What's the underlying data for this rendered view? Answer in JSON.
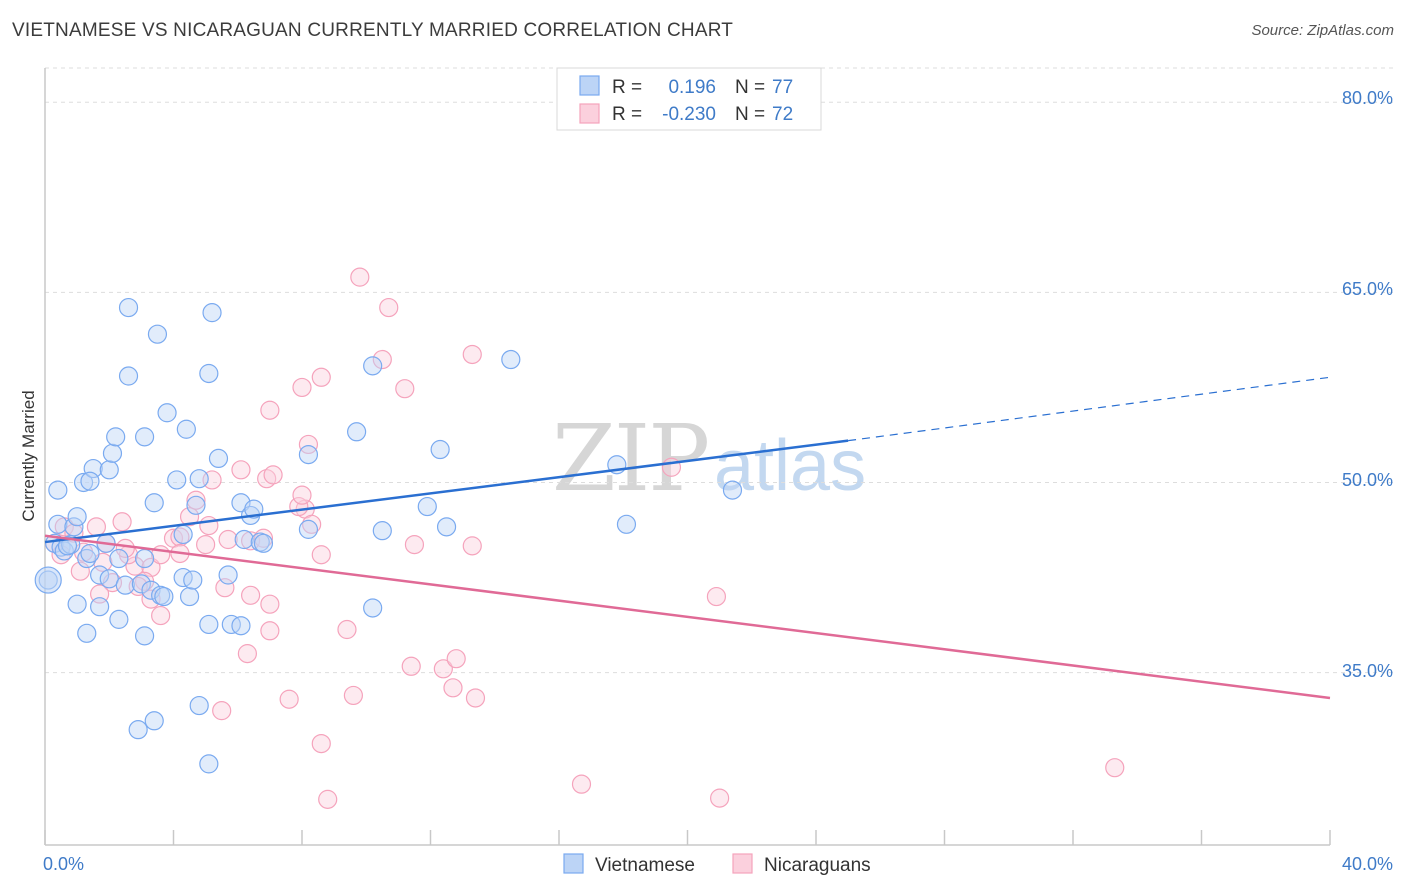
{
  "header": {
    "title": "VIETNAMESE VS NICARAGUAN CURRENTLY MARRIED CORRELATION CHART",
    "source": "Source: ZipAtlas.com"
  },
  "watermark": {
    "zip": "ZIP",
    "atlas": "atlas"
  },
  "legend": {
    "rows": [
      {
        "r_label": "R =",
        "r_value": "0.196",
        "n_label": "N =",
        "n_value": "77",
        "color": "#7aaaf0"
      },
      {
        "r_label": "R =",
        "r_value": "-0.230",
        "n_label": "N =",
        "n_value": "72",
        "color": "#f5a3bc"
      }
    ]
  },
  "bottom_legend": {
    "vietnamese": "Vietnamese",
    "nicaraguans": "Nicaraguans"
  },
  "axis": {
    "ylabel": "Currently Married",
    "x_min_label": "0.0%",
    "x_max_label": "40.0%",
    "y_ticks": [
      "80.0%",
      "65.0%",
      "50.0%",
      "35.0%"
    ]
  },
  "chart_data": {
    "type": "scatter",
    "title": "VIETNAMESE VS NICARAGUAN CURRENTLY MARRIED CORRELATION CHART",
    "xlabel": "",
    "ylabel": "Currently Married",
    "xlim": [
      0,
      40
    ],
    "ylim": [
      21.4,
      82.7
    ],
    "y_ticks": [
      35,
      50,
      65,
      80
    ],
    "grid": true,
    "colors": {
      "vietnamese": "#7aaaf0",
      "vietnamese_line": "#2a6fd1",
      "nicaraguans": "#f5a3bc",
      "nicaraguans_line": "#e06a96"
    },
    "series": [
      {
        "name": "Vietnamese",
        "trend": {
          "x0": 0,
          "y0": 45.3,
          "x1": 25,
          "y1": 53.3,
          "dashed_to_x": 40,
          "dashed_to_y": 58.3
        },
        "points": [
          [
            0.3,
            45.2
          ],
          [
            0.5,
            44.9
          ],
          [
            0.4,
            46.7
          ],
          [
            0.6,
            44.6
          ],
          [
            0.8,
            45.1
          ],
          [
            0.9,
            46.5
          ],
          [
            1.0,
            47.3
          ],
          [
            0.4,
            49.4
          ],
          [
            1.2,
            50.0
          ],
          [
            1.5,
            51.1
          ],
          [
            1.4,
            50.1
          ],
          [
            2.0,
            51.0
          ],
          [
            2.1,
            52.3
          ],
          [
            2.2,
            53.6
          ],
          [
            3.1,
            53.6
          ],
          [
            2.6,
            58.4
          ],
          [
            3.5,
            61.7
          ],
          [
            2.6,
            63.8
          ],
          [
            5.1,
            58.6
          ],
          [
            5.2,
            63.4
          ],
          [
            3.8,
            55.5
          ],
          [
            4.4,
            54.2
          ],
          [
            5.4,
            51.9
          ],
          [
            4.1,
            50.2
          ],
          [
            4.8,
            50.3
          ],
          [
            3.4,
            48.4
          ],
          [
            4.7,
            48.2
          ],
          [
            6.1,
            48.4
          ],
          [
            6.4,
            47.4
          ],
          [
            6.5,
            47.9
          ],
          [
            1.9,
            45.2
          ],
          [
            2.3,
            44.0
          ],
          [
            3.1,
            44.0
          ],
          [
            4.3,
            45.9
          ],
          [
            6.2,
            45.5
          ],
          [
            6.7,
            45.3
          ],
          [
            8.2,
            46.3
          ],
          [
            9.7,
            54.0
          ],
          [
            8.2,
            52.2
          ],
          [
            10.2,
            59.2
          ],
          [
            12.3,
            52.6
          ],
          [
            12.5,
            46.5
          ],
          [
            10.5,
            46.2
          ],
          [
            11.9,
            48.1
          ],
          [
            14.5,
            59.7
          ],
          [
            17.8,
            51.4
          ],
          [
            18.1,
            46.7
          ],
          [
            21.4,
            49.4
          ],
          [
            1.3,
            44.0
          ],
          [
            1.7,
            42.7
          ],
          [
            2.0,
            42.4
          ],
          [
            2.5,
            41.9
          ],
          [
            3.0,
            42.0
          ],
          [
            3.3,
            41.5
          ],
          [
            3.6,
            41.1
          ],
          [
            4.3,
            42.5
          ],
          [
            5.7,
            42.7
          ],
          [
            1.0,
            40.4
          ],
          [
            1.7,
            40.2
          ],
          [
            2.3,
            39.2
          ],
          [
            3.1,
            37.9
          ],
          [
            1.3,
            38.1
          ],
          [
            5.1,
            38.8
          ],
          [
            5.8,
            38.8
          ],
          [
            6.1,
            38.7
          ],
          [
            10.2,
            40.1
          ],
          [
            4.5,
            41.0
          ],
          [
            4.8,
            32.4
          ],
          [
            3.4,
            31.2
          ],
          [
            2.9,
            30.5
          ],
          [
            5.1,
            27.8
          ],
          [
            0.1,
            42.3
          ],
          [
            1.4,
            44.4
          ],
          [
            4.6,
            42.3
          ],
          [
            6.8,
            45.2
          ],
          [
            0.7,
            45.0
          ],
          [
            3.7,
            41.0
          ]
        ]
      },
      {
        "name": "Nicaraguans",
        "trend": {
          "x0": 0,
          "y0": 45.8,
          "x1": 40,
          "y1": 33.0
        },
        "points": [
          [
            0.3,
            45.2
          ],
          [
            0.5,
            44.3
          ],
          [
            0.6,
            46.5
          ],
          [
            0.9,
            46.0
          ],
          [
            1.2,
            44.5
          ],
          [
            1.6,
            46.5
          ],
          [
            1.9,
            45.2
          ],
          [
            2.4,
            46.9
          ],
          [
            2.8,
            43.4
          ],
          [
            1.1,
            43.0
          ],
          [
            1.8,
            43.7
          ],
          [
            2.1,
            42.1
          ],
          [
            2.6,
            44.3
          ],
          [
            3.3,
            43.3
          ],
          [
            3.1,
            42.2
          ],
          [
            3.6,
            44.3
          ],
          [
            4.0,
            45.6
          ],
          [
            4.2,
            45.7
          ],
          [
            4.5,
            47.3
          ],
          [
            4.7,
            48.6
          ],
          [
            5.1,
            46.6
          ],
          [
            5.0,
            45.1
          ],
          [
            5.7,
            45.5
          ],
          [
            6.4,
            45.4
          ],
          [
            6.8,
            45.6
          ],
          [
            5.2,
            50.2
          ],
          [
            6.1,
            51.0
          ],
          [
            6.9,
            50.3
          ],
          [
            7.1,
            50.6
          ],
          [
            8.1,
            47.9
          ],
          [
            8.3,
            46.7
          ],
          [
            8.6,
            44.3
          ],
          [
            7.9,
            48.1
          ],
          [
            8.0,
            49.0
          ],
          [
            5.6,
            41.7
          ],
          [
            6.4,
            41.1
          ],
          [
            7.0,
            40.4
          ],
          [
            7.0,
            38.3
          ],
          [
            6.3,
            36.5
          ],
          [
            3.6,
            39.5
          ],
          [
            3.3,
            40.8
          ],
          [
            2.9,
            41.8
          ],
          [
            1.7,
            41.2
          ],
          [
            7.0,
            55.7
          ],
          [
            8.0,
            57.5
          ],
          [
            8.6,
            58.3
          ],
          [
            8.2,
            53.0
          ],
          [
            9.6,
            33.2
          ],
          [
            9.4,
            38.4
          ],
          [
            8.6,
            29.4
          ],
          [
            8.8,
            25.0
          ],
          [
            9.8,
            66.2
          ],
          [
            10.5,
            59.7
          ],
          [
            10.7,
            63.8
          ],
          [
            11.2,
            57.4
          ],
          [
            11.4,
            35.5
          ],
          [
            11.5,
            45.1
          ],
          [
            12.4,
            35.3
          ],
          [
            12.8,
            36.1
          ],
          [
            13.3,
            45.0
          ],
          [
            13.4,
            33.0
          ],
          [
            13.3,
            60.1
          ],
          [
            16.7,
            26.2
          ],
          [
            20.9,
            41.0
          ],
          [
            21.0,
            25.1
          ],
          [
            19.5,
            51.2
          ],
          [
            33.3,
            27.5
          ],
          [
            5.5,
            32.0
          ],
          [
            7.6,
            32.9
          ],
          [
            12.7,
            33.8
          ],
          [
            4.2,
            44.4
          ],
          [
            2.5,
            44.8
          ]
        ]
      }
    ]
  }
}
